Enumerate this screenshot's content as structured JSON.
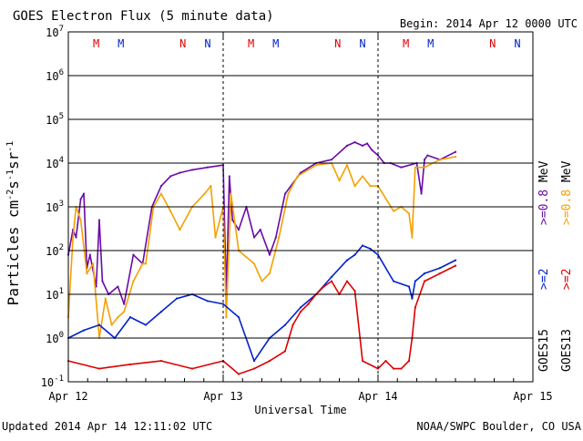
{
  "header": {
    "title": "GOES Electron Flux (5 minute data)",
    "begin": "Begin: 2014 Apr 12 0000 UTC"
  },
  "footer": {
    "updated": "Updated 2014 Apr 14 12:11:02 UTC",
    "credit": "NOAA/SWPC Boulder, CO USA"
  },
  "chart_data": {
    "type": "line",
    "title": "GOES Electron Flux (5 minute data)",
    "xlabel": "Universal Time",
    "ylabel": "Particles cm⁻²s⁻¹sr⁻¹",
    "yscale": "log",
    "ylim": [
      0.1,
      10000000
    ],
    "xlim": [
      0,
      3
    ],
    "x_unit": "days since 2014 Apr 12 0000 UTC",
    "x_ticks": [
      {
        "x": 0,
        "label": "Apr 12"
      },
      {
        "x": 1,
        "label": "Apr 13"
      },
      {
        "x": 2,
        "label": "Apr 14"
      },
      {
        "x": 3,
        "label": "Apr 15"
      }
    ],
    "y_ticks": [
      {
        "exp": -1,
        "label": "10",
        "sup": "-1"
      },
      {
        "exp": 0,
        "label": "10",
        "sup": "0"
      },
      {
        "exp": 1,
        "label": "10",
        "sup": "1"
      },
      {
        "exp": 2,
        "label": "10",
        "sup": "2"
      },
      {
        "exp": 3,
        "label": "10",
        "sup": "3"
      },
      {
        "exp": 4,
        "label": "10",
        "sup": "4"
      },
      {
        "exp": 5,
        "label": "10",
        "sup": "5"
      },
      {
        "exp": 6,
        "label": "10",
        "sup": "6"
      },
      {
        "exp": 7,
        "label": "10",
        "sup": "7"
      }
    ],
    "thresholds": [
      {
        "value": 1000,
        "style": "dashed"
      },
      {
        "value": 100000,
        "style": "solid"
      }
    ],
    "day_markers_dashed": [
      1,
      2
    ],
    "top_markers": [
      {
        "x": 0.18,
        "text": "M",
        "color": "#dd0000"
      },
      {
        "x": 0.34,
        "text": "M",
        "color": "#0022cc"
      },
      {
        "x": 0.74,
        "text": "N",
        "color": "#dd0000"
      },
      {
        "x": 0.9,
        "text": "N",
        "color": "#0022cc"
      },
      {
        "x": 1.18,
        "text": "M",
        "color": "#dd0000"
      },
      {
        "x": 1.34,
        "text": "M",
        "color": "#0022cc"
      },
      {
        "x": 1.74,
        "text": "N",
        "color": "#dd0000"
      },
      {
        "x": 1.9,
        "text": "N",
        "color": "#0022cc"
      },
      {
        "x": 2.18,
        "text": "M",
        "color": "#dd0000"
      },
      {
        "x": 2.34,
        "text": "M",
        "color": "#0022cc"
      },
      {
        "x": 2.74,
        "text": "N",
        "color": "#dd0000"
      },
      {
        "x": 2.9,
        "text": "N",
        "color": "#0022cc"
      }
    ],
    "legend": [
      {
        "label": ">=0.8 MeV",
        "color": "#6b0aa8",
        "group": "GOES15"
      },
      {
        "label": ">=0.8 MeV",
        "color": "#f5a000",
        "group": "GOES13"
      },
      {
        "label": ">=2 MeV",
        "color": "#0022cc",
        "group": "GOES15"
      },
      {
        "label": ">=2 MeV",
        "color": "#dd0000",
        "group": "GOES13"
      }
    ],
    "legend_groups": [
      "GOES15",
      "GOES13"
    ],
    "legend_words": {
      "geq": ">=",
      "e08": "0.8",
      "e2": "2",
      "unit": "MeV"
    },
    "series": [
      {
        "name": "GOES15 >=0.8 MeV",
        "color": "#6b0aa8",
        "x": [
          0,
          0.03,
          0.05,
          0.08,
          0.1,
          0.12,
          0.14,
          0.18,
          0.2,
          0.22,
          0.26,
          0.32,
          0.36,
          0.42,
          0.48,
          0.54,
          0.6,
          0.66,
          0.72,
          0.8,
          0.9,
          1.0,
          1.02,
          1.04,
          1.06,
          1.1,
          1.15,
          1.2,
          1.24,
          1.3,
          1.34,
          1.4,
          1.5,
          1.6,
          1.7,
          1.8,
          1.85,
          1.9,
          1.93,
          1.96,
          2.0,
          2.04,
          2.08,
          2.15,
          2.25,
          2.28,
          2.3,
          2.32,
          2.4,
          2.5
        ],
        "y": [
          80,
          300,
          200,
          1500,
          2000,
          40,
          80,
          15,
          500,
          20,
          10,
          15,
          6,
          80,
          50,
          1000,
          3000,
          5000,
          6000,
          7000,
          8000,
          9000,
          10,
          5000,
          500,
          300,
          1000,
          200,
          300,
          80,
          200,
          2000,
          6000,
          10000,
          12000,
          25000,
          30000,
          25000,
          28000,
          20000,
          15000,
          10000,
          10000,
          8000,
          10000,
          2000,
          12000,
          15000,
          12000,
          18000
        ]
      },
      {
        "name": "GOES13 >=0.8 MeV",
        "color": "#f5a000",
        "x": [
          0,
          0.03,
          0.05,
          0.08,
          0.12,
          0.16,
          0.2,
          0.24,
          0.28,
          0.32,
          0.36,
          0.42,
          0.48,
          0.5,
          0.55,
          0.6,
          0.66,
          0.72,
          0.8,
          0.88,
          0.92,
          0.95,
          1.0,
          1.02,
          1.05,
          1.1,
          1.2,
          1.25,
          1.3,
          1.36,
          1.42,
          1.48,
          1.6,
          1.7,
          1.75,
          1.8,
          1.85,
          1.9,
          1.95,
          2.0,
          2.1,
          2.15,
          2.2,
          2.22,
          2.24,
          2.3,
          2.4,
          2.5
        ],
        "y": [
          3,
          200,
          1000,
          500,
          30,
          50,
          1,
          8,
          2,
          3,
          4,
          20,
          50,
          50,
          1000,
          2000,
          800,
          300,
          1000,
          2000,
          3000,
          200,
          1000,
          3,
          2000,
          100,
          50,
          20,
          30,
          200,
          2000,
          5000,
          9000,
          10000,
          4000,
          9000,
          3000,
          5000,
          3000,
          3000,
          800,
          1000,
          700,
          200,
          8000,
          8000,
          12000,
          14000
        ]
      },
      {
        "name": "GOES15 >=2 MeV",
        "color": "#0022cc",
        "x": [
          0,
          0.1,
          0.2,
          0.3,
          0.4,
          0.5,
          0.6,
          0.7,
          0.8,
          0.9,
          1.0,
          1.1,
          1.2,
          1.3,
          1.4,
          1.5,
          1.6,
          1.7,
          1.8,
          1.85,
          1.9,
          1.95,
          2.0,
          2.1,
          2.2,
          2.22,
          2.24,
          2.3,
          2.4,
          2.5
        ],
        "y": [
          1,
          1.5,
          2,
          1,
          3,
          2,
          4,
          8,
          10,
          7,
          6,
          3,
          0.3,
          1,
          2,
          5,
          10,
          25,
          60,
          80,
          130,
          110,
          80,
          20,
          15,
          8,
          20,
          30,
          40,
          60
        ]
      },
      {
        "name": "GOES13 >=2 MeV",
        "color": "#dd0000",
        "x": [
          0,
          0.2,
          0.4,
          0.6,
          0.8,
          1.0,
          1.1,
          1.2,
          1.3,
          1.4,
          1.45,
          1.5,
          1.55,
          1.6,
          1.65,
          1.7,
          1.75,
          1.8,
          1.85,
          1.9,
          2.0,
          2.05,
          2.1,
          2.15,
          2.2,
          2.22,
          2.24,
          2.3,
          2.4,
          2.5
        ],
        "y": [
          0.3,
          0.2,
          0.25,
          0.3,
          0.2,
          0.3,
          0.15,
          0.2,
          0.3,
          0.5,
          2,
          4,
          6,
          10,
          15,
          20,
          10,
          20,
          12,
          0.3,
          0.2,
          0.3,
          0.2,
          0.2,
          0.3,
          1,
          5,
          20,
          30,
          45
        ]
      }
    ]
  }
}
